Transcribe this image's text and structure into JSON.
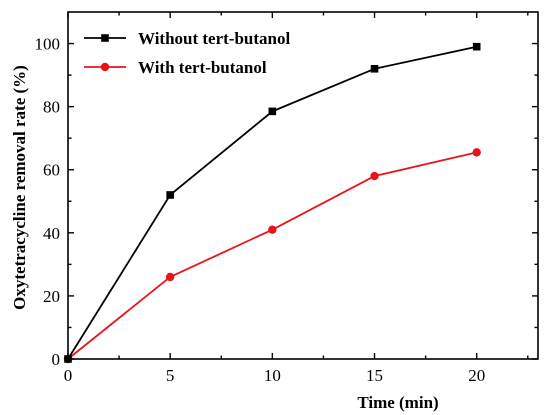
{
  "chart_data": {
    "type": "line",
    "title": "",
    "xlabel": "Time (min)",
    "ylabel": "Oxytetracycline removal rate (%)",
    "xlim": [
      0,
      23
    ],
    "ylim": [
      0,
      110
    ],
    "xticks": [
      0,
      5,
      10,
      15,
      20
    ],
    "yticks": [
      0,
      20,
      40,
      60,
      80,
      100
    ],
    "grid": false,
    "legend_position": "top-left",
    "x": [
      0,
      5,
      10,
      15,
      20
    ],
    "series": [
      {
        "name": "Without tert-butanol",
        "values": [
          0,
          52,
          78.5,
          92,
          99
        ],
        "color": "#000000",
        "marker": "square"
      },
      {
        "name": "With tert-butanol",
        "values": [
          0,
          26,
          41,
          58,
          65.5
        ],
        "color": "#e8141b",
        "marker": "circle"
      }
    ]
  }
}
